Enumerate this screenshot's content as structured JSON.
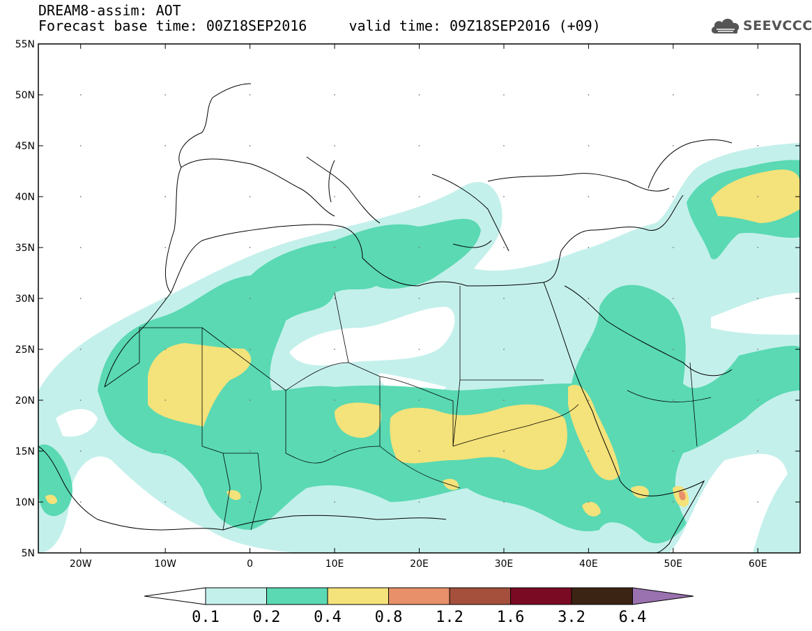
{
  "title": {
    "line1": "DREAM8-assim: AOT",
    "line2": "Forecast base time: 00Z18SEP2016     valid time: 09Z18SEP2016 (+09)"
  },
  "logo": {
    "text": "SEEVCCC",
    "icon": "cloud-logo-icon"
  },
  "map": {
    "lon_range": [
      -25,
      65
    ],
    "lat_range": [
      5,
      55
    ],
    "lat_ticks": [
      {
        "value": 55,
        "label": "55N"
      },
      {
        "value": 50,
        "label": "50N"
      },
      {
        "value": 45,
        "label": "45N"
      },
      {
        "value": 40,
        "label": "40N"
      },
      {
        "value": 35,
        "label": "35N"
      },
      {
        "value": 30,
        "label": "30N"
      },
      {
        "value": 25,
        "label": "25N"
      },
      {
        "value": 20,
        "label": "20N"
      },
      {
        "value": 15,
        "label": "15N"
      },
      {
        "value": 10,
        "label": "10N"
      },
      {
        "value": 5,
        "label": "5N"
      }
    ],
    "lon_ticks": [
      {
        "value": -20,
        "label": "20W"
      },
      {
        "value": -10,
        "label": "10W"
      },
      {
        "value": 0,
        "label": "0"
      },
      {
        "value": 10,
        "label": "10E"
      },
      {
        "value": 20,
        "label": "20E"
      },
      {
        "value": 30,
        "label": "30E"
      },
      {
        "value": 40,
        "label": "40E"
      },
      {
        "value": 50,
        "label": "50E"
      },
      {
        "value": 60,
        "label": "60E"
      }
    ]
  },
  "colorbar": {
    "under_color": "#ffffff",
    "over_color": "#9a72b0",
    "colors": [
      "#c4f0eb",
      "#5ad9b3",
      "#f4e27a",
      "#e8906a",
      "#a4503c",
      "#7a0a24",
      "#3b2414"
    ],
    "labels": [
      "0.1",
      "0.2",
      "0.4",
      "0.8",
      "1.2",
      "1.6",
      "3.2",
      "6.4"
    ]
  }
}
